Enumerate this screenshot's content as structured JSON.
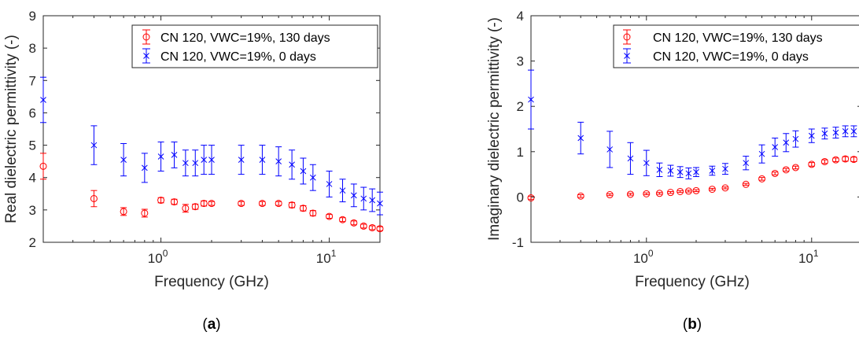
{
  "chart_data": [
    {
      "type": "scatter",
      "panel_label": "(a)",
      "xlabel": "Frequency (GHz)",
      "ylabel": "Real dielectric permittivity (-)",
      "x_scale": "log",
      "xlim": [
        0.2,
        20
      ],
      "ylim": [
        2,
        9
      ],
      "x_ticks": [
        {
          "value": 1,
          "base": "10",
          "exp": "0"
        },
        {
          "value": 10,
          "base": "10",
          "exp": "1"
        }
      ],
      "y_ticks": [
        "2",
        "3",
        "4",
        "5",
        "6",
        "7",
        "8",
        "9"
      ],
      "grid": false,
      "legend_position": "top-right",
      "series": [
        {
          "name": "CN 120, VWC=19%, 130 days",
          "marker": "circle",
          "color": "#ff0000",
          "x": [
            0.2,
            0.4,
            0.6,
            0.8,
            1.0,
            1.2,
            1.4,
            1.6,
            1.8,
            2.0,
            3.0,
            4.0,
            5.0,
            6.0,
            7.0,
            8.0,
            10.0,
            12.0,
            14.0,
            16.0,
            18.0,
            20.0
          ],
          "y": [
            4.35,
            3.35,
            2.95,
            2.9,
            3.3,
            3.25,
            3.05,
            3.1,
            3.2,
            3.2,
            3.2,
            3.2,
            3.2,
            3.15,
            3.05,
            2.9,
            2.8,
            2.7,
            2.6,
            2.5,
            2.45,
            2.42
          ],
          "err": [
            0.4,
            0.25,
            0.12,
            0.12,
            0.08,
            0.08,
            0.12,
            0.08,
            0.08,
            0.06,
            0.06,
            0.06,
            0.06,
            0.08,
            0.08,
            0.08,
            0.06,
            0.06,
            0.06,
            0.06,
            0.06,
            0.06
          ]
        },
        {
          "name": "CN 120, VWC=19%, 0 days",
          "marker": "x",
          "color": "#0000ff",
          "x": [
            0.2,
            0.4,
            0.6,
            0.8,
            1.0,
            1.2,
            1.4,
            1.6,
            1.8,
            2.0,
            3.0,
            4.0,
            5.0,
            6.0,
            7.0,
            8.0,
            10.0,
            12.0,
            14.0,
            16.0,
            18.0,
            20.0
          ],
          "y": [
            6.4,
            5.0,
            4.55,
            4.3,
            4.65,
            4.7,
            4.45,
            4.45,
            4.55,
            4.55,
            4.55,
            4.55,
            4.5,
            4.4,
            4.2,
            4.0,
            3.8,
            3.6,
            3.45,
            3.35,
            3.3,
            3.2
          ],
          "err": [
            0.7,
            0.6,
            0.5,
            0.45,
            0.45,
            0.4,
            0.4,
            0.4,
            0.45,
            0.45,
            0.45,
            0.45,
            0.45,
            0.45,
            0.4,
            0.4,
            0.4,
            0.35,
            0.35,
            0.35,
            0.35,
            0.35
          ]
        }
      ]
    },
    {
      "type": "scatter",
      "panel_label": "(b)",
      "xlabel": "Frequency (GHz)",
      "ylabel": "Imaginary dielectric permittivity (-)",
      "x_scale": "log",
      "xlim": [
        0.2,
        20
      ],
      "ylim": [
        -1,
        4
      ],
      "x_ticks": [
        {
          "value": 1,
          "base": "10",
          "exp": "0"
        },
        {
          "value": 10,
          "base": "10",
          "exp": "1"
        }
      ],
      "y_ticks": [
        "-1",
        "0",
        "1",
        "2",
        "3",
        "4"
      ],
      "grid": false,
      "legend_position": "top-right",
      "series": [
        {
          "name": "CN 120, VWC=19%, 130 days",
          "marker": "circle",
          "color": "#ff0000",
          "x": [
            0.2,
            0.4,
            0.6,
            0.8,
            1.0,
            1.2,
            1.4,
            1.6,
            1.8,
            2.0,
            2.5,
            3.0,
            4.0,
            5.0,
            6.0,
            7.0,
            8.0,
            10.0,
            12.0,
            14.0,
            16.0,
            18.0
          ],
          "y": [
            -0.02,
            0.02,
            0.05,
            0.06,
            0.07,
            0.08,
            0.1,
            0.12,
            0.13,
            0.14,
            0.17,
            0.2,
            0.28,
            0.4,
            0.52,
            0.6,
            0.65,
            0.72,
            0.78,
            0.82,
            0.84,
            0.83
          ],
          "err": [
            0.03,
            0.03,
            0.02,
            0.02,
            0.02,
            0.02,
            0.02,
            0.02,
            0.02,
            0.02,
            0.02,
            0.02,
            0.02,
            0.03,
            0.03,
            0.03,
            0.03,
            0.04,
            0.04,
            0.04,
            0.05,
            0.05
          ]
        },
        {
          "name": "CN 120, VWC=19%, 0 days",
          "marker": "x",
          "color": "#0000ff",
          "x": [
            0.2,
            0.4,
            0.6,
            0.8,
            1.0,
            1.2,
            1.4,
            1.6,
            1.8,
            2.0,
            2.5,
            3.0,
            4.0,
            5.0,
            6.0,
            7.0,
            8.0,
            10.0,
            12.0,
            14.0,
            16.0,
            18.0
          ],
          "y": [
            2.15,
            1.3,
            1.05,
            0.85,
            0.75,
            0.6,
            0.58,
            0.55,
            0.52,
            0.55,
            0.58,
            0.62,
            0.75,
            0.95,
            1.1,
            1.2,
            1.28,
            1.35,
            1.4,
            1.42,
            1.45,
            1.45
          ],
          "err": [
            0.65,
            0.35,
            0.4,
            0.35,
            0.28,
            0.15,
            0.12,
            0.12,
            0.12,
            0.1,
            0.1,
            0.12,
            0.15,
            0.2,
            0.2,
            0.2,
            0.18,
            0.15,
            0.12,
            0.12,
            0.12,
            0.12
          ]
        }
      ]
    }
  ]
}
